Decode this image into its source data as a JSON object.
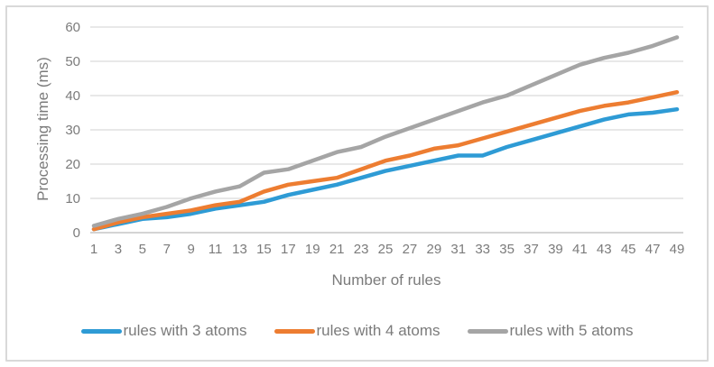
{
  "chart_data": {
    "type": "line",
    "title": "",
    "xlabel": "Number of rules",
    "ylabel": "Processing time (ms)",
    "x": [
      1,
      3,
      5,
      7,
      9,
      11,
      13,
      15,
      17,
      19,
      21,
      23,
      25,
      27,
      29,
      31,
      33,
      35,
      37,
      39,
      41,
      43,
      45,
      47,
      49
    ],
    "ylim": [
      0,
      60
    ],
    "y_ticks": [
      0,
      10,
      20,
      30,
      40,
      50,
      60
    ],
    "grid": "horizontal",
    "legend_position": "bottom",
    "colors": {
      "gridline": "#D9D9D9",
      "axis_line": "#C6C6C6",
      "label_text": "#7B7B7B",
      "figure_border": "#D9D9D9"
    },
    "series": [
      {
        "name": "rules with 3 atoms",
        "color": "#2E9BD5",
        "values": [
          1,
          2.5,
          4,
          4.5,
          5.5,
          7,
          8,
          9,
          11,
          12.5,
          14,
          16,
          18,
          19.5,
          21,
          22.5,
          22.5,
          25,
          27,
          29,
          31,
          33,
          34.5,
          35,
          36
        ]
      },
      {
        "name": "rules with 4 atoms",
        "color": "#ED7D31",
        "values": [
          1,
          3,
          4.5,
          5.5,
          6.5,
          8,
          9,
          12,
          14,
          15,
          16,
          18.5,
          21,
          22.5,
          24.5,
          25.5,
          27.5,
          29.5,
          31.5,
          33.5,
          35.5,
          37,
          38,
          39.5,
          41
        ]
      },
      {
        "name": "rules with 5 atoms",
        "color": "#A5A5A5",
        "values": [
          2,
          4,
          5.5,
          7.5,
          10,
          12,
          13.5,
          17.5,
          18.5,
          21,
          23.5,
          25,
          28,
          30.5,
          33,
          35.5,
          38,
          40,
          43,
          46,
          49,
          51,
          52.5,
          54.5,
          57
        ]
      }
    ]
  }
}
